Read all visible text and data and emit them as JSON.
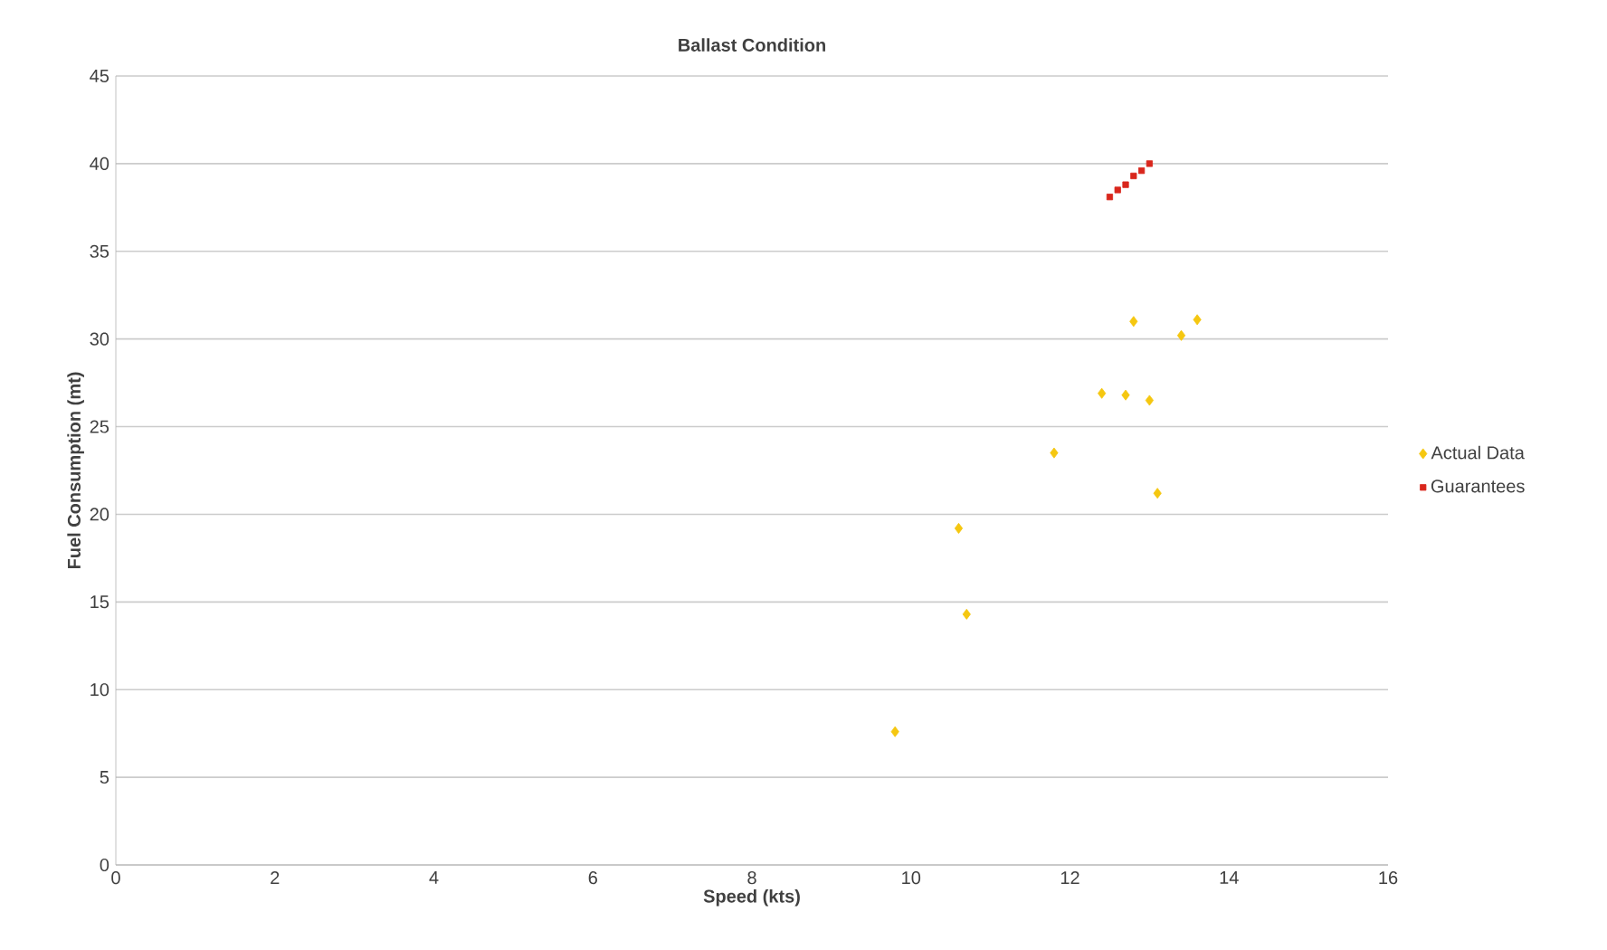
{
  "chart_data": {
    "type": "scatter",
    "title": "Ballast Condition",
    "xlabel": "Speed (kts)",
    "ylabel": "Fuel Consumption (mt)",
    "xlim": [
      0,
      16
    ],
    "xticks": [
      0,
      2,
      4,
      6,
      8,
      10,
      12,
      14,
      16
    ],
    "ylim": [
      0,
      45
    ],
    "yticks": [
      0,
      5,
      10,
      15,
      20,
      25,
      30,
      35,
      40,
      45
    ],
    "grid": "y",
    "legend": "right",
    "series": [
      {
        "name": "Actual Data",
        "color": "#f5c710",
        "marker": "diamond",
        "x": [
          9.8,
          10.6,
          10.7,
          11.8,
          12.4,
          12.7,
          13.0,
          12.8,
          13.4,
          13.6,
          13.1
        ],
        "values": [
          7.6,
          19.2,
          14.3,
          23.5,
          26.9,
          26.8,
          26.5,
          31.0,
          30.2,
          31.1,
          21.2
        ]
      },
      {
        "name": "Guarantees",
        "color": "#d9261c",
        "marker": "square",
        "x": [
          12.5,
          12.6,
          12.7,
          12.8,
          12.9,
          13.0
        ],
        "values": [
          38.1,
          38.5,
          38.8,
          39.3,
          39.6,
          40.0
        ]
      }
    ]
  }
}
